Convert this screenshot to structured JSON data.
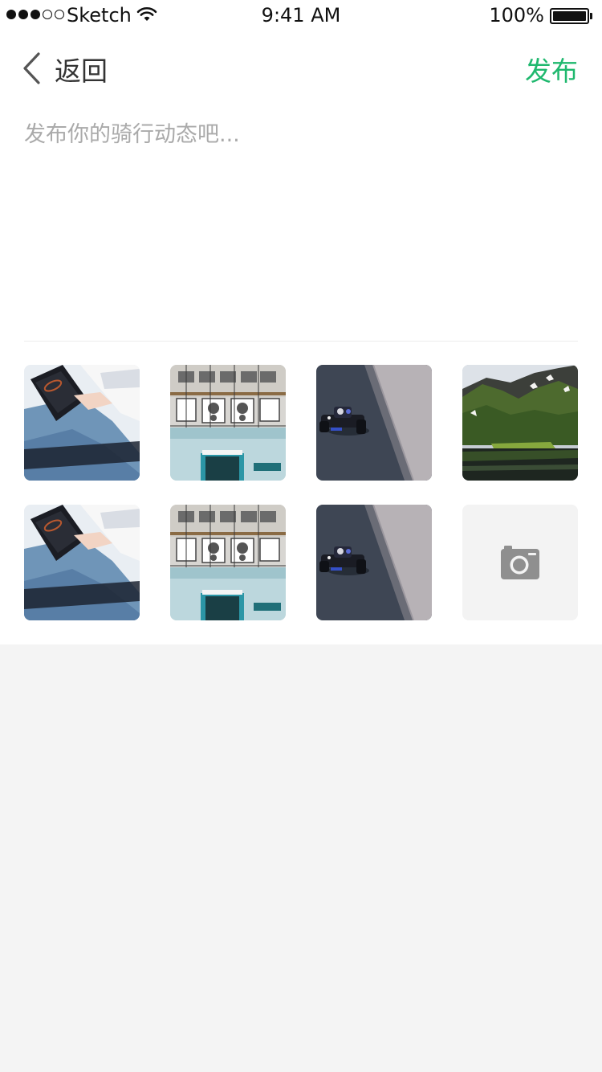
{
  "status_bar": {
    "carrier": "Sketch",
    "time": "9:41 AM",
    "battery": "100%",
    "signal_bars": 3
  },
  "nav": {
    "back_label": "返回",
    "publish_label": "发布"
  },
  "composer": {
    "placeholder": "发布你的骑行动态吧...",
    "value": ""
  },
  "photos": [
    {
      "subject": "notebook-and-jeans"
    },
    {
      "subject": "building-air-conditioners"
    },
    {
      "subject": "toy-racing-car"
    },
    {
      "subject": "green-mountain-lake"
    },
    {
      "subject": "notebook-and-jeans"
    },
    {
      "subject": "building-air-conditioners"
    },
    {
      "subject": "toy-racing-car"
    }
  ],
  "add_photo": {
    "icon": "camera-icon"
  },
  "colors": {
    "accent": "#1fb86e",
    "placeholder": "#aaaaaa",
    "page_background": "#f4f4f4",
    "add_tile": "#f3f3f3"
  }
}
